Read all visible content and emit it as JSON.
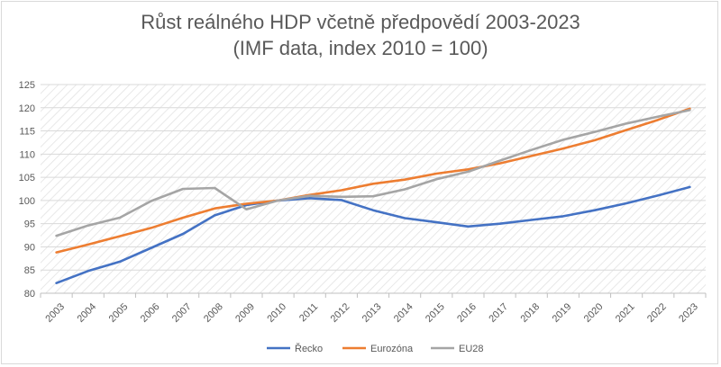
{
  "chart_data": {
    "type": "line",
    "title": "Růst reálného HDP včetně předpovědí 2003-2023",
    "subtitle": "(IMF data, index 2010 = 100)",
    "xlabel": "",
    "ylabel": "",
    "ylim": [
      80,
      125
    ],
    "yticks": [
      80,
      85,
      90,
      95,
      100,
      105,
      110,
      115,
      120,
      125
    ],
    "categories": [
      "2003",
      "2004",
      "2005",
      "2006",
      "2007",
      "2008",
      "2009",
      "2010",
      "2011",
      "2012",
      "2013",
      "2014",
      "2015",
      "2016",
      "2017",
      "2018",
      "2019",
      "2020",
      "2021",
      "2022",
      "2023"
    ],
    "grid": true,
    "legend_position": "bottom",
    "series": [
      {
        "name": "Řecko",
        "color": "#4472C4",
        "values": [
          82.2,
          84.8,
          86.8,
          89.8,
          92.8,
          96.8,
          99.0,
          100.0,
          100.5,
          100.1,
          97.9,
          96.2,
          95.3,
          94.4,
          95.0,
          95.8,
          96.6,
          97.9,
          99.4,
          101.1,
          102.9
        ]
      },
      {
        "name": "Eurozóna",
        "color": "#ED7D31",
        "values": [
          88.8,
          90.5,
          92.3,
          94.1,
          96.3,
          98.3,
          99.3,
          100.0,
          101.2,
          102.2,
          103.6,
          104.5,
          105.8,
          106.7,
          108.0,
          109.6,
          111.2,
          113.0,
          115.2,
          117.4,
          119.8
        ]
      },
      {
        "name": "EU28",
        "color": "#A5A5A5",
        "values": [
          92.4,
          94.6,
          96.3,
          99.9,
          102.5,
          102.7,
          98.1,
          100.0,
          101.0,
          100.8,
          100.9,
          102.4,
          104.6,
          106.2,
          108.6,
          110.9,
          113.1,
          114.8,
          116.6,
          118.1,
          119.5
        ]
      }
    ]
  }
}
